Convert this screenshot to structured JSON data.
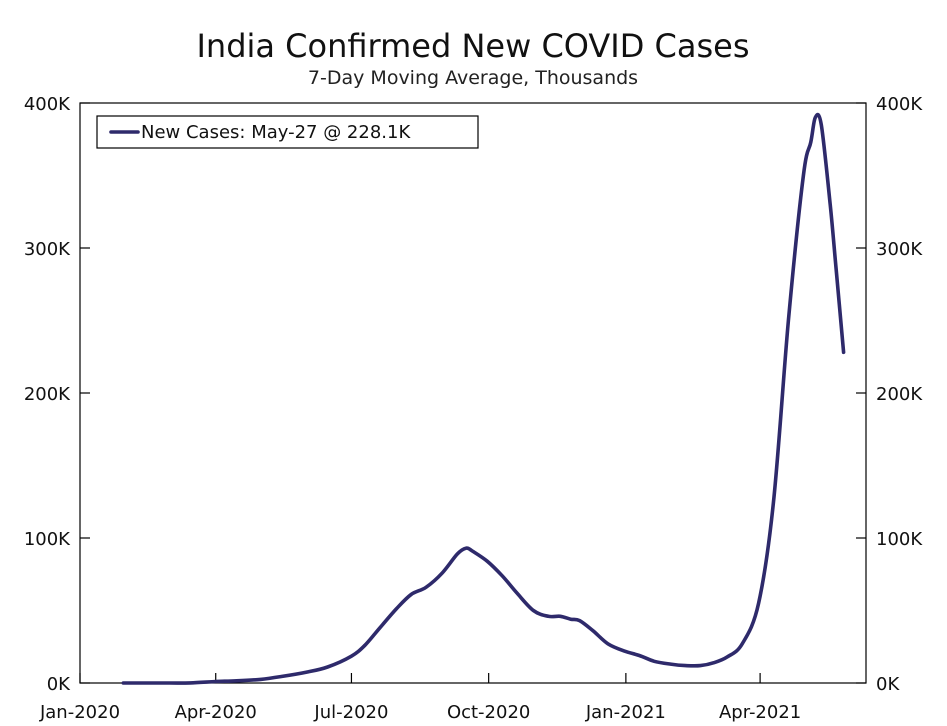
{
  "chart_data": {
    "type": "line",
    "title": "India Confirmed New COVID Cases",
    "subtitle": "7-Day Moving Average, Thousands",
    "xlabel": "",
    "ylabel": "",
    "x_domain": [
      "2020-01-01",
      "2021-06-11"
    ],
    "ylim": [
      0,
      400
    ],
    "y_ticks": [
      0,
      100,
      200,
      300,
      400
    ],
    "y_tick_labels": [
      "0K",
      "100K",
      "200K",
      "300K",
      "400K"
    ],
    "x_ticks": [
      "2020-01-01",
      "2020-04-01",
      "2020-07-01",
      "2020-10-01",
      "2021-01-01",
      "2021-04-01"
    ],
    "x_tick_labels": [
      "Jan-2020",
      "Apr-2020",
      "Jul-2020",
      "Oct-2020",
      "Jan-2021",
      "Apr-2021"
    ],
    "grid": false,
    "legend_position": "top-left",
    "colors": {
      "line": "#2e2a6b",
      "axis": "#000000"
    },
    "series": [
      {
        "name": "New Cases: May-27 @ 228.1K",
        "x": [
          "2020-01-30",
          "2020-03-01",
          "2020-03-15",
          "2020-04-01",
          "2020-04-15",
          "2020-05-01",
          "2020-05-15",
          "2020-06-01",
          "2020-06-15",
          "2020-07-01",
          "2020-07-10",
          "2020-07-20",
          "2020-07-31",
          "2020-08-10",
          "2020-08-20",
          "2020-08-31",
          "2020-09-10",
          "2020-09-16",
          "2020-09-20",
          "2020-09-30",
          "2020-10-10",
          "2020-10-20",
          "2020-10-31",
          "2020-11-10",
          "2020-11-18",
          "2020-11-25",
          "2020-12-01",
          "2020-12-10",
          "2020-12-20",
          "2020-12-31",
          "2021-01-10",
          "2021-01-20",
          "2021-01-31",
          "2021-02-10",
          "2021-02-20",
          "2021-03-01",
          "2021-03-10",
          "2021-03-20",
          "2021-03-31",
          "2021-04-10",
          "2021-04-20",
          "2021-04-30",
          "2021-05-05",
          "2021-05-08",
          "2021-05-12",
          "2021-05-18",
          "2021-05-22",
          "2021-05-27"
        ],
        "values": [
          0,
          0,
          0.1,
          1,
          1.5,
          2.5,
          4.5,
          7.5,
          11,
          18.5,
          26,
          38,
          51,
          61,
          66,
          76,
          89,
          93,
          91,
          84,
          74,
          62,
          50,
          46,
          46,
          44,
          43,
          36,
          27,
          22,
          19,
          15,
          13,
          12,
          12,
          14,
          18,
          27,
          55,
          125,
          250,
          350,
          373,
          390,
          385,
          330,
          285,
          228.1
        ]
      }
    ]
  }
}
